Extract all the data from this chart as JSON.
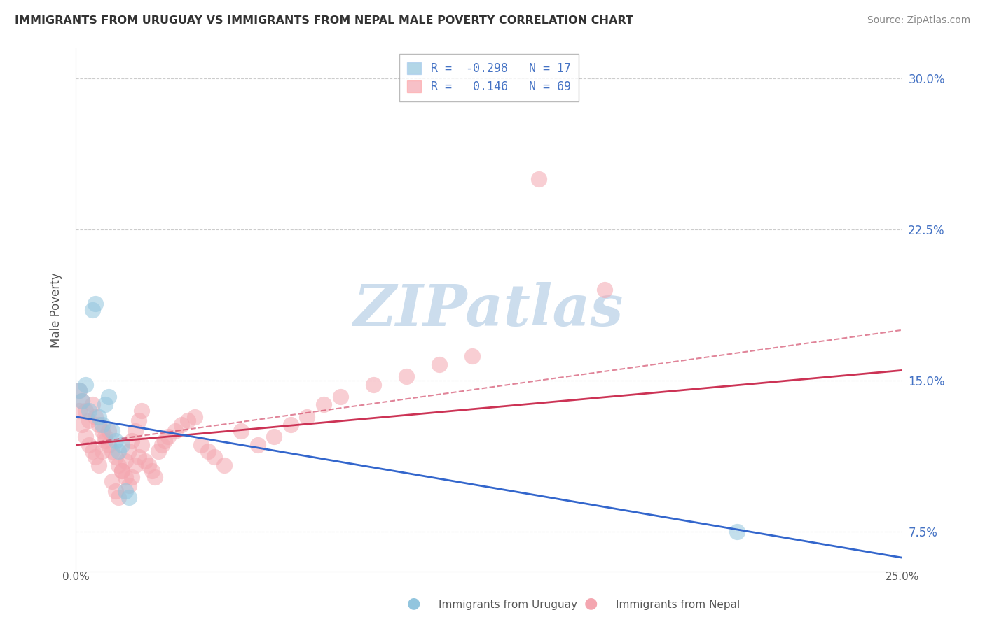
{
  "title": "IMMIGRANTS FROM URUGUAY VS IMMIGRANTS FROM NEPAL MALE POVERTY CORRELATION CHART",
  "source": "Source: ZipAtlas.com",
  "ylabel": "Male Poverty",
  "legend_uruguay": "Immigrants from Uruguay",
  "legend_nepal": "Immigrants from Nepal",
  "R_uruguay": -0.298,
  "N_uruguay": 17,
  "R_nepal": 0.146,
  "N_nepal": 69,
  "xlim": [
    0.0,
    0.25
  ],
  "ylim": [
    0.055,
    0.315
  ],
  "yticks": [
    0.075,
    0.15,
    0.225,
    0.3
  ],
  "ytick_labels": [
    "7.5%",
    "15.0%",
    "22.5%",
    "30.0%"
  ],
  "color_uruguay": "#92c5de",
  "color_nepal": "#f4a6b0",
  "trendline_uruguay_color": "#3366cc",
  "trendline_nepal_color": "#cc3355",
  "watermark_color": "#ccdded",
  "background_color": "#ffffff",
  "nepal_x": [
    0.001,
    0.002,
    0.003,
    0.004,
    0.005,
    0.006,
    0.007,
    0.008,
    0.009,
    0.01,
    0.011,
    0.012,
    0.013,
    0.014,
    0.015,
    0.016,
    0.017,
    0.018,
    0.019,
    0.02,
    0.001,
    0.002,
    0.003,
    0.004,
    0.005,
    0.006,
    0.007,
    0.008,
    0.009,
    0.01,
    0.011,
    0.012,
    0.013,
    0.014,
    0.015,
    0.016,
    0.017,
    0.018,
    0.019,
    0.02,
    0.021,
    0.022,
    0.023,
    0.024,
    0.025,
    0.026,
    0.027,
    0.028,
    0.03,
    0.032,
    0.034,
    0.036,
    0.038,
    0.04,
    0.042,
    0.045,
    0.05,
    0.055,
    0.06,
    0.065,
    0.07,
    0.075,
    0.08,
    0.09,
    0.1,
    0.11,
    0.12,
    0.14,
    0.16
  ],
  "nepal_y": [
    0.135,
    0.128,
    0.122,
    0.118,
    0.115,
    0.112,
    0.108,
    0.115,
    0.12,
    0.125,
    0.1,
    0.095,
    0.092,
    0.105,
    0.11,
    0.098,
    0.102,
    0.108,
    0.112,
    0.118,
    0.145,
    0.14,
    0.135,
    0.13,
    0.138,
    0.132,
    0.128,
    0.125,
    0.122,
    0.118,
    0.115,
    0.112,
    0.108,
    0.105,
    0.102,
    0.115,
    0.12,
    0.125,
    0.13,
    0.135,
    0.11,
    0.108,
    0.105,
    0.102,
    0.115,
    0.118,
    0.12,
    0.122,
    0.125,
    0.128,
    0.13,
    0.132,
    0.118,
    0.115,
    0.112,
    0.108,
    0.125,
    0.118,
    0.122,
    0.128,
    0.132,
    0.138,
    0.142,
    0.148,
    0.152,
    0.158,
    0.162,
    0.25,
    0.195
  ],
  "uruguay_x": [
    0.001,
    0.002,
    0.003,
    0.004,
    0.005,
    0.006,
    0.007,
    0.008,
    0.009,
    0.01,
    0.011,
    0.012,
    0.013,
    0.014,
    0.015,
    0.016,
    0.2
  ],
  "uruguay_y": [
    0.145,
    0.14,
    0.148,
    0.135,
    0.185,
    0.188,
    0.132,
    0.128,
    0.138,
    0.142,
    0.125,
    0.12,
    0.115,
    0.118,
    0.095,
    0.092,
    0.075
  ],
  "nepal_trend_x0": 0.0,
  "nepal_trend_y0": 0.118,
  "nepal_trend_x1": 0.25,
  "nepal_trend_y1": 0.155,
  "uruguay_trend_x0": 0.0,
  "uruguay_trend_y0": 0.132,
  "uruguay_trend_x1": 0.25,
  "uruguay_trend_y1": 0.062
}
